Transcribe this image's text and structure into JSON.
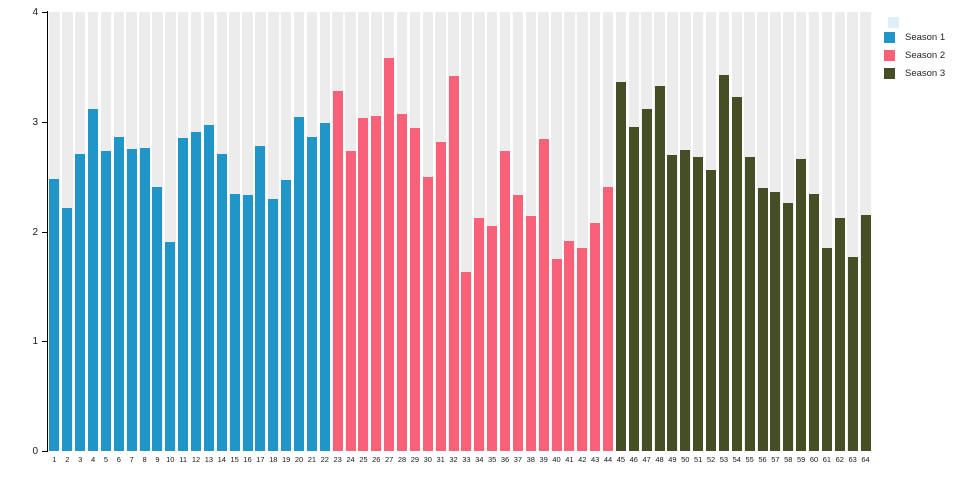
{
  "chart_data": {
    "type": "bar",
    "title": "",
    "xlabel": "",
    "ylabel": "",
    "ylim": [
      0,
      4
    ],
    "ytick_labels": [
      "0",
      "1",
      "2",
      "3",
      "4"
    ],
    "grid": "column-stripes",
    "stripe_color": "#ececec",
    "legend_position": "top-right",
    "x_labels": [
      "1",
      "2",
      "3",
      "4",
      "5",
      "6",
      "7",
      "8",
      "9",
      "10",
      "11",
      "12",
      "13",
      "14",
      "15",
      "16",
      "17",
      "18",
      "19",
      "20",
      "21",
      "22",
      "23",
      "24",
      "25",
      "26",
      "27",
      "28",
      "29",
      "30",
      "31",
      "32",
      "33",
      "34",
      "35",
      "36",
      "37",
      "38",
      "39",
      "40",
      "41",
      "42",
      "43",
      "44",
      "45",
      "46",
      "47",
      "48",
      "49",
      "50",
      "51",
      "52",
      "53",
      "54",
      "55",
      "56",
      "57",
      "58",
      "59",
      "60",
      "61",
      "62",
      "63",
      "64"
    ],
    "series": [
      {
        "name": "Season 1",
        "color": "#2095c8",
        "values": [
          2.48,
          2.21,
          2.71,
          3.12,
          2.73,
          2.86,
          2.75,
          2.76,
          2.41,
          1.9,
          2.85,
          2.91,
          2.97,
          2.71,
          2.34,
          2.33,
          2.78,
          2.3,
          2.47,
          3.04,
          2.86,
          2.99
        ]
      },
      {
        "name": "Season 2",
        "color": "#f96178",
        "values": [
          3.28,
          2.73,
          3.03,
          3.05,
          3.58,
          3.07,
          2.94,
          2.5,
          2.82,
          3.42,
          1.63,
          2.12,
          2.05,
          2.73,
          2.33,
          2.14,
          2.84,
          1.75,
          1.91,
          1.85,
          2.08,
          2.41
        ]
      },
      {
        "name": "Season 3",
        "color": "#464e26",
        "values": [
          3.36,
          2.95,
          3.12,
          3.33,
          2.7,
          2.74,
          2.68,
          2.56,
          3.43,
          3.23,
          2.68,
          2.4,
          2.36,
          2.26,
          2.66,
          2.34,
          1.85,
          2.12,
          1.77,
          2.15
        ]
      }
    ]
  }
}
